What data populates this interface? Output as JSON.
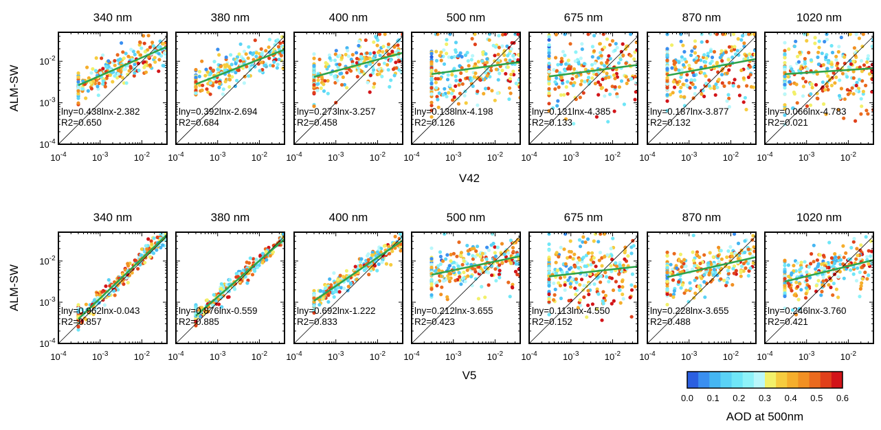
{
  "figure": {
    "y_axis_label": "ALM-SW",
    "row_xlabels": [
      "V42",
      "V5"
    ],
    "colorbar": {
      "title": "AOD at 500nm",
      "ticks": [
        "0.0",
        "0.1",
        "0.2",
        "0.3",
        "0.4",
        "0.5",
        "0.6"
      ],
      "colors": [
        "#2b5fe0",
        "#3a8ff0",
        "#45b6f2",
        "#5ad2f5",
        "#6fe6f7",
        "#8ef2f8",
        "#b9f7fb",
        "#f2f06a",
        "#f6cc3f",
        "#f5ae2c",
        "#f19023",
        "#ea6a1e",
        "#e0401b",
        "#d21419"
      ],
      "range": [
        0,
        0.6
      ]
    },
    "tick_labels": {
      "x": [
        "10-4",
        "10-3",
        "10-2"
      ],
      "y": [
        "10-4",
        "10-3",
        "10-2"
      ]
    },
    "colors": {
      "fit_line": "#2ea34a",
      "one_to_one": "#000000",
      "frame": "#000000"
    }
  },
  "chart_data": [
    {
      "type": "scatter",
      "row_label": "V42",
      "xlabel": "V42",
      "ylabel": "ALM-SW",
      "xscale": "log",
      "yscale": "log",
      "xlim": [
        0.0001,
        0.04
      ],
      "ylim": [
        0.0001,
        0.05
      ],
      "panels": [
        {
          "title": "340 nm",
          "equation": "lny=0.438lnx-2.382",
          "r2": "R2=0.650",
          "slope": 0.438,
          "intercept": -2.382
        },
        {
          "title": "380 nm",
          "equation": "lny=0.392lnx-2.694",
          "r2": "R2=0.684",
          "slope": 0.392,
          "intercept": -2.694
        },
        {
          "title": "400 nm",
          "equation": "lny=0.273lnx-3.257",
          "r2": "R2=0.458",
          "slope": 0.273,
          "intercept": -3.257
        },
        {
          "title": "500 nm",
          "equation": "lny=0.138lnx-4.198",
          "r2": "R2=0.126",
          "slope": 0.138,
          "intercept": -4.198
        },
        {
          "title": "675 nm",
          "equation": "lny=0.131lnx-4.385",
          "r2": "R2=0.133",
          "slope": 0.131,
          "intercept": -4.385
        },
        {
          "title": "870 nm",
          "equation": "lny=0.187lnx-3.877",
          "r2": "R2=0.132",
          "slope": 0.187,
          "intercept": -3.877
        },
        {
          "title": "1020 nm",
          "equation": "lny=0.066lnx-4.783",
          "r2": "R2=0.021",
          "slope": 0.066,
          "intercept": -4.783
        }
      ]
    },
    {
      "type": "scatter",
      "row_label": "V5",
      "xlabel": "V5",
      "ylabel": "ALM-SW",
      "xscale": "log",
      "yscale": "log",
      "xlim": [
        0.0001,
        0.04
      ],
      "ylim": [
        0.0001,
        0.05
      ],
      "panels": [
        {
          "title": "340 nm",
          "equation": "lny=0.962lnx-0.043",
          "r2": "R2=0.857",
          "slope": 0.962,
          "intercept": -0.043
        },
        {
          "title": "380 nm",
          "equation": "lny=0.876lnx-0.559",
          "r2": "R2=0.885",
          "slope": 0.876,
          "intercept": -0.559
        },
        {
          "title": "400 nm",
          "equation": "lny=0.692lnx-1.222",
          "r2": "R2=0.833",
          "slope": 0.692,
          "intercept": -1.222
        },
        {
          "title": "500 nm",
          "equation": "lny=0.212lnx-3.655",
          "r2": "R2=0.423",
          "slope": 0.212,
          "intercept": -3.655
        },
        {
          "title": "675 nm",
          "equation": "lny=0.113lnx-4.550",
          "r2": "R2=0.152",
          "slope": 0.113,
          "intercept": -4.55
        },
        {
          "title": "870 nm",
          "equation": "lny=0.228lnx-3.655",
          "r2": "R2=0.488",
          "slope": 0.228,
          "intercept": -3.655
        },
        {
          "title": "1020 nm",
          "equation": "lny=0.246lnx-3.760",
          "r2": "R2=0.421",
          "slope": 0.246,
          "intercept": -3.76
        }
      ]
    }
  ]
}
